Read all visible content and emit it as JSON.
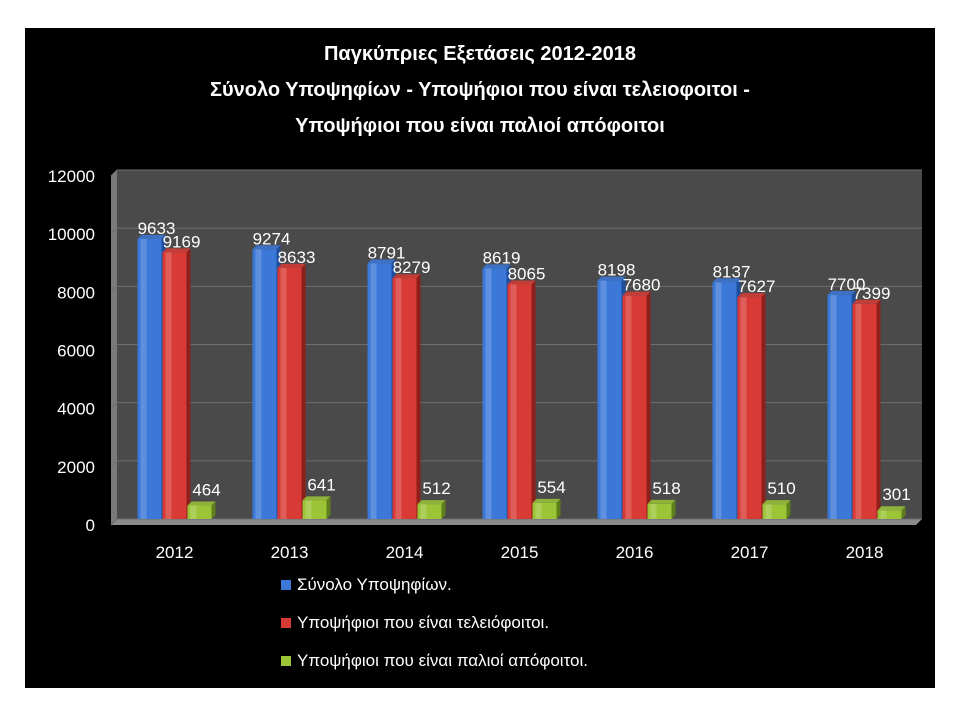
{
  "colors": {
    "background": "#000000",
    "plot_area": "#4a4a4a",
    "gridline": "#6e6e6e",
    "text": "#ffffff"
  },
  "chart_data": {
    "type": "bar",
    "title_lines": [
      "Παγκύπριες Εξετάσεις 2012-2018",
      "Σύνολο Υποψηφίων - Υποψήφιοι που είναι τελειοφοιτοι -",
      "Υποψήφιοι που είναι παλιοί απόφοιτοι"
    ],
    "categories": [
      "2012",
      "2013",
      "2014",
      "2015",
      "2016",
      "2017",
      "2018"
    ],
    "series": [
      {
        "name": "Σύνολο Υποψηφίων.",
        "color": "#3b78d8",
        "color_dark": "#1f4e9c",
        "values": [
          9633,
          9274,
          8791,
          8619,
          8198,
          8137,
          7700
        ]
      },
      {
        "name": "Υποψήφιοι που είναι τελειόφοιτοι.",
        "color": "#d83b35",
        "color_dark": "#8e1f1b",
        "values": [
          9169,
          8633,
          8279,
          8065,
          7680,
          7627,
          7399
        ]
      },
      {
        "name": "Υποψήφιοι που είναι παλιοί απόφοιτοι.",
        "color": "#9bc437",
        "color_dark": "#5e7f1c",
        "values": [
          464,
          641,
          512,
          554,
          518,
          510,
          301
        ]
      }
    ],
    "ylim": [
      0,
      12000
    ],
    "yticks": [
      0,
      2000,
      4000,
      6000,
      8000,
      10000,
      12000
    ],
    "grid": true,
    "legend_position": "bottom"
  }
}
